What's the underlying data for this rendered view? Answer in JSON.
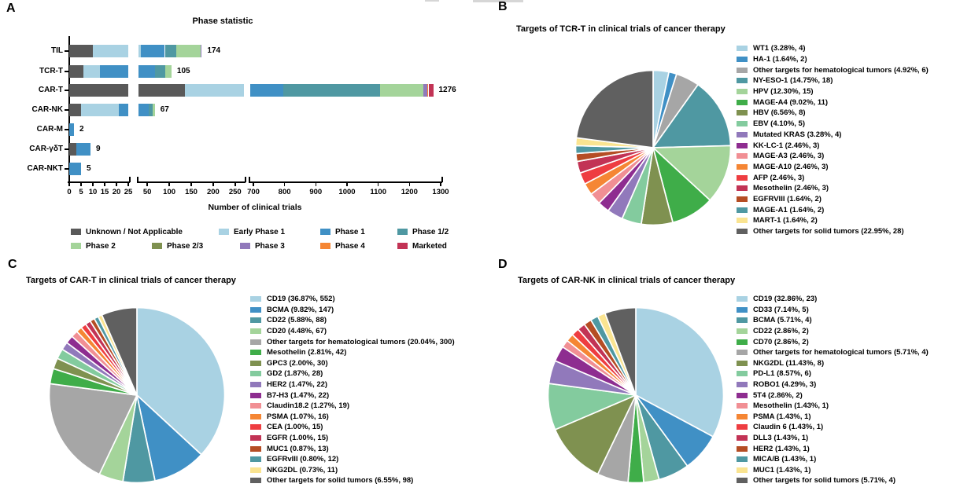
{
  "figure": {
    "panel_letters": {
      "a": "A",
      "b": "B",
      "c": "C",
      "d": "D"
    }
  },
  "chart_data": [
    {
      "panel": "A",
      "type": "bar",
      "variant": "horizontal-stacked-broken-axis",
      "title": "Phase statistic",
      "xlabel": "Number of clinical trials",
      "categories": [
        "TIL",
        "TCR-T",
        "CAR-T",
        "CAR-NK",
        "CAR-M",
        "CAR-γδT",
        "CAR-NKT"
      ],
      "totals": [
        174,
        105,
        1276,
        67,
        2,
        9,
        5
      ],
      "axis_segments": [
        {
          "range": [
            0,
            25
          ],
          "ticks": [
            0,
            5,
            10,
            15,
            20,
            25
          ]
        },
        {
          "range": [
            30,
            270
          ],
          "ticks": [
            50,
            100,
            150,
            200,
            250
          ]
        },
        {
          "range": [
            690,
            1300
          ],
          "ticks": [
            700,
            800,
            900,
            1000,
            1100,
            1200,
            1300
          ]
        }
      ],
      "legend": [
        {
          "label": "Unknown / Not Applicable",
          "color": "#595959"
        },
        {
          "label": "Early Phase 1",
          "color": "#a9d2e3"
        },
        {
          "label": "Phase 1",
          "color": "#4090c5"
        },
        {
          "label": "Phase 1/2",
          "color": "#4f98a2"
        },
        {
          "label": "Phase 2",
          "color": "#a4d49a"
        },
        {
          "label": "Phase 2/3",
          "color": "#7f9150"
        },
        {
          "label": "Phase 3",
          "color": "#9179bb"
        },
        {
          "label": "Phase 4",
          "color": "#f58634"
        },
        {
          "label": "Marketed",
          "color": "#c23355"
        }
      ],
      "series": [
        {
          "name": "Unknown / Not Applicable",
          "values": [
            10,
            6,
            135,
            5,
            0,
            3,
            0
          ]
        },
        {
          "name": "Early Phase 1",
          "values": [
            25,
            7,
            160,
            16,
            0,
            0,
            0
          ]
        },
        {
          "name": "Phase 1",
          "values": [
            55,
            55,
            500,
            32,
            2,
            6,
            5
          ]
        },
        {
          "name": "Phase 1/2",
          "values": [
            25,
            23,
            310,
            10,
            0,
            0,
            0
          ]
        },
        {
          "name": "Phase 2",
          "values": [
            57,
            14,
            140,
            4,
            0,
            0,
            0
          ]
        },
        {
          "name": "Phase 2/3",
          "values": [
            0,
            0,
            0,
            0,
            0,
            0,
            0
          ]
        },
        {
          "name": "Phase 3",
          "values": [
            2,
            0,
            12,
            0,
            0,
            0,
            0
          ]
        },
        {
          "name": "Phase 4",
          "values": [
            0,
            0,
            4,
            0,
            0,
            0,
            0
          ]
        },
        {
          "name": "Marketed",
          "values": [
            0,
            0,
            15,
            0,
            0,
            0,
            0
          ]
        }
      ],
      "series_note": "Per-phase values estimated from drawn segment lengths; only row totals are printed on the figure."
    },
    {
      "panel": "B",
      "type": "pie",
      "title": "Targets of TCR-T in clinical trials of cancer therapy",
      "slices": [
        {
          "name": "WT1",
          "pct": 3.28,
          "count": 4,
          "color": "#a9d2e3"
        },
        {
          "name": "HA-1",
          "pct": 1.64,
          "count": 2,
          "color": "#4090c5"
        },
        {
          "name": "Other targets for hematological tumors",
          "pct": 4.92,
          "count": 6,
          "color": "#a6a6a6"
        },
        {
          "name": "NY-ESO-1",
          "pct": 14.75,
          "count": 18,
          "color": "#4f98a2"
        },
        {
          "name": "HPV",
          "pct": 12.3,
          "count": 15,
          "color": "#a4d49a"
        },
        {
          "name": "MAGE-A4",
          "pct": 9.02,
          "count": 11,
          "color": "#3fad49"
        },
        {
          "name": "HBV",
          "pct": 6.56,
          "count": 8,
          "color": "#7f9150"
        },
        {
          "name": "EBV",
          "pct": 4.1,
          "count": 5,
          "color": "#83cb9e"
        },
        {
          "name": "Mutated KRAS",
          "pct": 3.28,
          "count": 4,
          "color": "#9179bb"
        },
        {
          "name": "KK-LC-1",
          "pct": 2.46,
          "count": 3,
          "color": "#8e2d90"
        },
        {
          "name": "MAGE-A3",
          "pct": 2.46,
          "count": 3,
          "color": "#f18f94"
        },
        {
          "name": "MAGE-A10",
          "pct": 2.46,
          "count": 3,
          "color": "#f58634"
        },
        {
          "name": "AFP",
          "pct": 2.46,
          "count": 3,
          "color": "#ee3d41"
        },
        {
          "name": "Mesothelin",
          "pct": 2.46,
          "count": 3,
          "color": "#c23355"
        },
        {
          "name": "EGFRVIII",
          "pct": 1.64,
          "count": 2,
          "color": "#b54d24"
        },
        {
          "name": "MAGE-A1",
          "pct": 1.64,
          "count": 2,
          "color": "#4f98a2"
        },
        {
          "name": "MART-1",
          "pct": 1.64,
          "count": 2,
          "color": "#fae491"
        },
        {
          "name": "Other targets for solid tumors",
          "pct": 22.95,
          "count": 28,
          "color": "#606060"
        }
      ]
    },
    {
      "panel": "C",
      "type": "pie",
      "title": "Targets of CAR-T in clinical trials of cancer therapy",
      "slices": [
        {
          "name": "CD19",
          "pct": 36.87,
          "count": 552,
          "color": "#a9d2e3"
        },
        {
          "name": "BCMA",
          "pct": 9.82,
          "count": 147,
          "color": "#4090c5"
        },
        {
          "name": "CD22",
          "pct": 5.88,
          "count": 88,
          "color": "#4f98a2"
        },
        {
          "name": "CD20",
          "pct": 4.48,
          "count": 67,
          "color": "#a4d49a"
        },
        {
          "name": "Other targets for hematological tumors",
          "pct": 20.04,
          "count": 300,
          "color": "#a6a6a6"
        },
        {
          "name": "Mesothelin",
          "pct": 2.81,
          "count": 42,
          "color": "#3fad49"
        },
        {
          "name": "GPC3",
          "pct": 2.0,
          "count": 30,
          "color": "#7f9150"
        },
        {
          "name": "GD2",
          "pct": 1.87,
          "count": 28,
          "color": "#83cb9e"
        },
        {
          "name": "HER2",
          "pct": 1.47,
          "count": 22,
          "color": "#9179bb"
        },
        {
          "name": "B7-H3",
          "pct": 1.47,
          "count": 22,
          "color": "#8e2d90"
        },
        {
          "name": "Claudin18.2",
          "pct": 1.27,
          "count": 19,
          "color": "#f18f94"
        },
        {
          "name": "PSMA",
          "pct": 1.07,
          "count": 16,
          "color": "#f58634"
        },
        {
          "name": "CEA",
          "pct": 1.0,
          "count": 15,
          "color": "#ee3d41"
        },
        {
          "name": "EGFR",
          "pct": 1.0,
          "count": 15,
          "color": "#c23355"
        },
        {
          "name": "MUC1",
          "pct": 0.87,
          "count": 13,
          "color": "#b54d24"
        },
        {
          "name": "EGFRvIII",
          "pct": 0.8,
          "count": 12,
          "color": "#4f98a2"
        },
        {
          "name": "NKG2DL",
          "pct": 0.73,
          "count": 11,
          "color": "#fae491"
        },
        {
          "name": "Other targets for solid tumors",
          "pct": 6.55,
          "count": 98,
          "color": "#606060"
        }
      ]
    },
    {
      "panel": "D",
      "type": "pie",
      "title": "Targets of CAR-NK in clinical trials of cancer therapy",
      "slices": [
        {
          "name": "CD19",
          "pct": 32.86,
          "count": 23,
          "color": "#a9d2e3"
        },
        {
          "name": "CD33",
          "pct": 7.14,
          "count": 5,
          "color": "#4090c5"
        },
        {
          "name": "BCMA",
          "pct": 5.71,
          "count": 4,
          "color": "#4f98a2"
        },
        {
          "name": "CD22",
          "pct": 2.86,
          "count": 2,
          "color": "#a4d49a"
        },
        {
          "name": "CD70",
          "pct": 2.86,
          "count": 2,
          "color": "#3fad49"
        },
        {
          "name": "Other targets for hematological tumors",
          "pct": 5.71,
          "count": 4,
          "color": "#a6a6a6"
        },
        {
          "name": "NKG2DL",
          "pct": 11.43,
          "count": 8,
          "color": "#7f9150"
        },
        {
          "name": "PD-L1",
          "pct": 8.57,
          "count": 6,
          "color": "#83cb9e"
        },
        {
          "name": "ROBO1",
          "pct": 4.29,
          "count": 3,
          "color": "#9179bb"
        },
        {
          "name": "5T4",
          "pct": 2.86,
          "count": 2,
          "color": "#8e2d90"
        },
        {
          "name": "Mesothelin",
          "pct": 1.43,
          "count": 1,
          "color": "#f18f94"
        },
        {
          "name": "PSMA",
          "pct": 1.43,
          "count": 1,
          "color": "#f58634"
        },
        {
          "name": "Claudin 6",
          "pct": 1.43,
          "count": 1,
          "color": "#ee3d41"
        },
        {
          "name": "DLL3",
          "pct": 1.43,
          "count": 1,
          "color": "#c23355"
        },
        {
          "name": "HER2",
          "pct": 1.43,
          "count": 1,
          "color": "#b54d24"
        },
        {
          "name": "MICA/B",
          "pct": 1.43,
          "count": 1,
          "color": "#4f98a2"
        },
        {
          "name": "MUC1",
          "pct": 1.43,
          "count": 1,
          "color": "#fae491"
        },
        {
          "name": "Other targets for solid tumors",
          "pct": 5.71,
          "count": 4,
          "color": "#606060"
        }
      ]
    }
  ]
}
